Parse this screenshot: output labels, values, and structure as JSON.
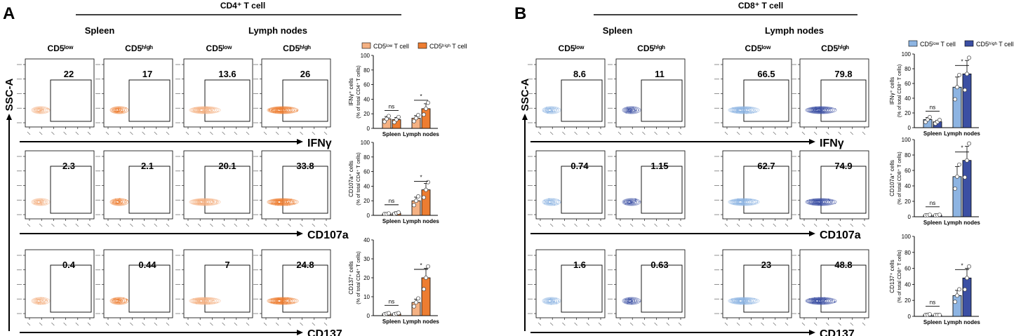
{
  "panels": [
    {
      "letter": "A",
      "title": "CD4⁺ T cell",
      "tissue_labels": [
        "Spleen",
        "Lymph nodes"
      ],
      "column_labels": [
        "CD5ˡᵒʷ",
        "CD5ʰⁱᵍʰ",
        "CD5ˡᵒʷ",
        "CD5ʰⁱᵍʰ"
      ],
      "y_axis_label": "SSC-A",
      "low_color": "#f4b183",
      "high_color": "#ed7d31",
      "row_markers": [
        "IFNγ",
        "CD107a",
        "CD137"
      ],
      "percentages": [
        [
          "22",
          "17",
          "13.6",
          "26"
        ],
        [
          "2.3",
          "2.1",
          "20.1",
          "33.8"
        ],
        [
          "0.4",
          "0.44",
          "7",
          "24.8"
        ]
      ],
      "legend": [
        "CD5ˡᵒʷ T cell",
        "CD5ʰⁱᵍʰ T cell"
      ]
    },
    {
      "letter": "B",
      "title": "CD8⁺ T cell",
      "tissue_labels": [
        "Spleen",
        "Lymph nodes"
      ],
      "column_labels": [
        "CD5ˡᵒʷ",
        "CD5ʰⁱᵍʰ",
        "CD5ˡᵒʷ",
        "CD5ʰⁱᵍʰ"
      ],
      "y_axis_label": "SSC-A",
      "low_color": "#8db4e2",
      "high_color": "#3b4fa3",
      "row_markers": [
        "IFNγ",
        "CD107a",
        "CD137"
      ],
      "percentages": [
        [
          "8.6",
          "11",
          "66.5",
          "79.8"
        ],
        [
          "0.74",
          "1.15",
          "62.7",
          "74.9"
        ],
        [
          "1.6",
          "0.63",
          "23",
          "48.8"
        ]
      ],
      "legend": [
        "CD5ˡᵒʷ T cell",
        "CD5ʰⁱᵍʰ T cell"
      ]
    }
  ],
  "chart_data": [
    {
      "type": "bar",
      "panel": "A",
      "ylabel": "IFNγ⁺ cells\n(% of total CD4⁺ T cells)",
      "categories": [
        "Spleen",
        "Lymph nodes"
      ],
      "series": [
        {
          "name": "CD5low T cell",
          "values": [
            13,
            14
          ]
        },
        {
          "name": "CD5high T cell",
          "values": [
            12,
            27
          ]
        }
      ],
      "significance": [
        "ns",
        "*"
      ],
      "ylim": [
        0,
        100
      ],
      "yticks": [
        "0",
        "20",
        "40",
        "60",
        "80",
        "100"
      ]
    },
    {
      "type": "bar",
      "panel": "A",
      "ylabel": "CD107a⁺ cells\n(% of total CD4⁺ T cells)",
      "categories": [
        "Spleen",
        "Lymph nodes"
      ],
      "series": [
        {
          "name": "CD5low T cell",
          "values": [
            2,
            20
          ]
        },
        {
          "name": "CD5high T cell",
          "values": [
            3,
            35
          ]
        }
      ],
      "significance": [
        "ns",
        "*"
      ],
      "ylim": [
        0,
        100
      ],
      "yticks": [
        "0",
        "20",
        "40",
        "60",
        "80",
        "100"
      ]
    },
    {
      "type": "bar",
      "panel": "A",
      "ylabel": "CD137⁺ cells\n(% of total CD4⁺ T cells)",
      "categories": [
        "Spleen",
        "Lymph nodes"
      ],
      "series": [
        {
          "name": "CD5low T cell",
          "values": [
            1,
            7
          ]
        },
        {
          "name": "CD5high T cell",
          "values": [
            1,
            20
          ]
        }
      ],
      "significance": [
        "ns",
        "*"
      ],
      "ylim": [
        0,
        40
      ],
      "yticks": [
        "0",
        "10",
        "20",
        "30",
        "40"
      ]
    },
    {
      "type": "bar",
      "panel": "B",
      "ylabel": "IFNγ⁺ cells\n(% of total CD8⁺ T cells)",
      "categories": [
        "Spleen",
        "Lymph nodes"
      ],
      "series": [
        {
          "name": "CD5low T cell",
          "values": [
            11,
            55
          ]
        },
        {
          "name": "CD5high T cell",
          "values": [
            8,
            73
          ]
        }
      ],
      "significance": [
        "ns",
        "*"
      ],
      "ylim": [
        0,
        100
      ],
      "yticks": [
        "0",
        "20",
        "40",
        "60",
        "80",
        "100"
      ]
    },
    {
      "type": "bar",
      "panel": "B",
      "ylabel": "CD107a⁺ cells\n(% of total CD8⁺ T cells)",
      "categories": [
        "Spleen",
        "Lymph nodes"
      ],
      "series": [
        {
          "name": "CD5low T cell",
          "values": [
            2,
            52
          ]
        },
        {
          "name": "CD5high T cell",
          "values": [
            2,
            73
          ]
        }
      ],
      "significance": [
        "ns",
        "*"
      ],
      "ylim": [
        0,
        100
      ],
      "yticks": [
        "0",
        "20",
        "40",
        "60",
        "80",
        "100"
      ]
    },
    {
      "type": "bar",
      "panel": "B",
      "ylabel": "CD137⁺ cells\n(% of total CD8⁺ T cells)",
      "categories": [
        "Spleen",
        "Lymph nodes"
      ],
      "series": [
        {
          "name": "CD5low T cell",
          "values": [
            2,
            26
          ]
        },
        {
          "name": "CD5high T cell",
          "values": [
            1,
            48
          ]
        }
      ],
      "significance": [
        "ns",
        "*"
      ],
      "ylim": [
        0,
        100
      ],
      "yticks": [
        "0",
        "20",
        "40",
        "60",
        "80",
        "100"
      ]
    }
  ]
}
